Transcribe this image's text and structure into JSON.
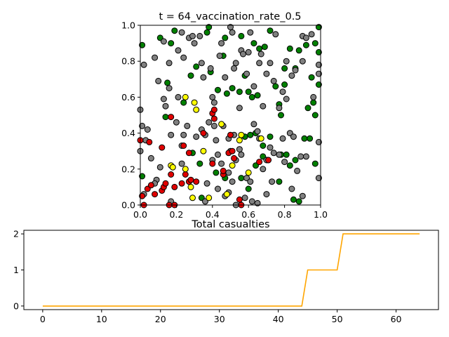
{
  "chart_data": [
    {
      "type": "scatter",
      "title": "t = 64_vaccination_rate_0.5",
      "xlim": [
        0,
        1
      ],
      "ylim": [
        0,
        1
      ],
      "xticks": [
        "0.0",
        "0.2",
        "0.4",
        "0.6",
        "0.8",
        "1.0"
      ],
      "yticks": [
        "0.0",
        "0.2",
        "0.4",
        "0.6",
        "0.8",
        "1.0"
      ],
      "status_colors": {
        "grey": "#808080",
        "green": "#008000",
        "red": "#e00000",
        "yellow": "#ffff00"
      },
      "series": [
        {
          "color": "green",
          "points": [
            [
              0.01,
              0.89
            ],
            [
              0.11,
              0.93
            ],
            [
              0.17,
              0.9
            ],
            [
              0.19,
              0.97
            ],
            [
              0.28,
              0.72
            ],
            [
              0.31,
              0.77
            ],
            [
              0.37,
              0.96
            ],
            [
              0.38,
              0.99
            ],
            [
              0.39,
              0.74
            ],
            [
              0.46,
              0.83
            ],
            [
              0.47,
              0.93
            ],
            [
              0.48,
              0.62
            ],
            [
              0.43,
              0.64
            ],
            [
              0.56,
              0.94
            ],
            [
              0.58,
              0.72
            ],
            [
              0.55,
              0.63
            ],
            [
              0.6,
              0.63
            ],
            [
              0.62,
              0.6
            ],
            [
              0.63,
              0.9
            ],
            [
              0.65,
              0.61
            ],
            [
              0.66,
              0.87
            ],
            [
              0.69,
              0.88
            ],
            [
              0.72,
              0.97
            ],
            [
              0.75,
              0.66
            ],
            [
              0.77,
              0.56
            ],
            [
              0.78,
              0.5
            ],
            [
              0.8,
              0.76
            ],
            [
              0.83,
              0.87
            ],
            [
              0.86,
              0.76
            ],
            [
              0.88,
              0.86
            ],
            [
              0.92,
              0.89
            ],
            [
              0.95,
              0.71
            ],
            [
              0.97,
              0.9
            ],
            [
              0.99,
              0.85
            ],
            [
              0.99,
              0.99
            ],
            [
              0.96,
              0.57
            ],
            [
              0.93,
              0.54
            ],
            [
              0.97,
              0.5
            ],
            [
              0.99,
              0.67
            ],
            [
              0.72,
              0.38
            ],
            [
              0.68,
              0.33
            ],
            [
              0.64,
              0.4
            ],
            [
              0.61,
              0.39
            ],
            [
              0.58,
              0.38
            ],
            [
              0.64,
              0.22
            ],
            [
              0.56,
              0.15
            ],
            [
              0.47,
              0.15
            ],
            [
              0.42,
              0.18
            ],
            [
              0.33,
              0.23
            ],
            [
              0.34,
              0.04
            ],
            [
              0.71,
              0.25
            ],
            [
              0.77,
              0.13
            ],
            [
              0.78,
              0.28
            ],
            [
              0.81,
              0.28
            ],
            [
              0.83,
              0.22
            ],
            [
              0.85,
              0.03
            ],
            [
              0.86,
              0.25
            ],
            [
              0.88,
              0.02
            ],
            [
              0.91,
              0.37
            ],
            [
              0.94,
              0.37
            ],
            [
              0.97,
              0.23
            ],
            [
              0.24,
              0.57
            ],
            [
              0.29,
              0.29
            ],
            [
              0.14,
              0.49
            ],
            [
              0.15,
              0.68
            ],
            [
              0.01,
              0.16
            ],
            [
              0.6,
              0.09
            ],
            [
              0.68,
              0.27
            ],
            [
              0.8,
              0.67
            ],
            [
              0.51,
              0.65
            ]
          ]
        },
        {
          "color": "grey",
          "points": [
            [
              0.02,
              0.78
            ],
            [
              0.08,
              0.82
            ],
            [
              0.1,
              0.69
            ],
            [
              0.13,
              0.91
            ],
            [
              0.16,
              0.65
            ],
            [
              0.16,
              0.79
            ],
            [
              0.21,
              0.86
            ],
            [
              0.23,
              0.96
            ],
            [
              0.24,
              0.82
            ],
            [
              0.27,
              0.93
            ],
            [
              0.29,
              0.94
            ],
            [
              0.3,
              0.9
            ],
            [
              0.33,
              0.94
            ],
            [
              0.34,
              0.79
            ],
            [
              0.35,
              0.71
            ],
            [
              0.39,
              0.76
            ],
            [
              0.4,
              0.6
            ],
            [
              0.41,
              0.57
            ],
            [
              0.44,
              0.83
            ],
            [
              0.45,
              0.9
            ],
            [
              0.47,
              0.71
            ],
            [
              0.5,
              0.99
            ],
            [
              0.51,
              0.96
            ],
            [
              0.52,
              0.76
            ],
            [
              0.53,
              0.79
            ],
            [
              0.55,
              0.54
            ],
            [
              0.56,
              0.86
            ],
            [
              0.57,
              0.84
            ],
            [
              0.59,
              0.73
            ],
            [
              0.6,
              0.85
            ],
            [
              0.61,
              0.96
            ],
            [
              0.63,
              0.66
            ],
            [
              0.66,
              0.79
            ],
            [
              0.67,
              0.84
            ],
            [
              0.68,
              0.55
            ],
            [
              0.7,
              0.73
            ],
            [
              0.72,
              0.79
            ],
            [
              0.74,
              0.69
            ],
            [
              0.75,
              0.95
            ],
            [
              0.77,
              0.54
            ],
            [
              0.79,
              0.63
            ],
            [
              0.81,
              0.59
            ],
            [
              0.81,
              0.8
            ],
            [
              0.84,
              0.72
            ],
            [
              0.86,
              0.75
            ],
            [
              0.9,
              0.94
            ],
            [
              0.9,
              0.8
            ],
            [
              0.92,
              0.93
            ],
            [
              0.95,
              0.95
            ],
            [
              0.96,
              0.6
            ],
            [
              0.99,
              0.78
            ],
            [
              0.99,
              0.73
            ],
            [
              0.0,
              0.53
            ],
            [
              0.01,
              0.44
            ],
            [
              0.04,
              0.42
            ],
            [
              0.06,
              0.26
            ],
            [
              0.09,
              0.14
            ],
            [
              0.11,
              0.21
            ],
            [
              0.13,
              0.59
            ],
            [
              0.14,
              0.55
            ],
            [
              0.17,
              0.39
            ],
            [
              0.2,
              0.46
            ],
            [
              0.21,
              0.6
            ],
            [
              0.23,
              0.33
            ],
            [
              0.24,
              0.39
            ],
            [
              0.26,
              0.44
            ],
            [
              0.31,
              0.38
            ],
            [
              0.34,
              0.42
            ],
            [
              0.36,
              0.39
            ],
            [
              0.38,
              0.46
            ],
            [
              0.41,
              0.44
            ],
            [
              0.42,
              0.36
            ],
            [
              0.43,
              0.28
            ],
            [
              0.45,
              0.23
            ],
            [
              0.46,
              0.44
            ],
            [
              0.49,
              0.37
            ],
            [
              0.5,
              0.3
            ],
            [
              0.52,
              0.39
            ],
            [
              0.53,
              0.25
            ],
            [
              0.55,
              0.31
            ],
            [
              0.56,
              0.28
            ],
            [
              0.59,
              0.15
            ],
            [
              0.61,
              0.13
            ],
            [
              0.63,
              0.45
            ],
            [
              0.65,
              0.41
            ],
            [
              0.66,
              0.37
            ],
            [
              0.68,
              0.2
            ],
            [
              0.7,
              0.25
            ],
            [
              0.72,
              0.32
            ],
            [
              0.74,
              0.29
            ],
            [
              0.77,
              0.28
            ],
            [
              0.79,
              0.37
            ],
            [
              0.8,
              0.24
            ],
            [
              0.83,
              0.4
            ],
            [
              0.85,
              0.38
            ],
            [
              0.87,
              0.19
            ],
            [
              0.89,
              0.27
            ],
            [
              0.92,
              0.27
            ],
            [
              0.99,
              0.35
            ],
            [
              0.99,
              0.15
            ],
            [
              0.47,
              0.05
            ],
            [
              0.49,
              0.07
            ],
            [
              0.53,
              0.0
            ],
            [
              0.58,
              0.04
            ],
            [
              0.62,
              0.02
            ],
            [
              0.65,
              0.01
            ],
            [
              0.7,
              0.06
            ],
            [
              0.73,
              0.13
            ],
            [
              0.84,
              0.09
            ],
            [
              0.9,
              0.05
            ],
            [
              0.0,
              0.3
            ],
            [
              0.03,
              0.36
            ],
            [
              0.02,
              0.06
            ],
            [
              0.08,
              0.12
            ],
            [
              0.17,
              0.02
            ],
            [
              0.23,
              0.23
            ],
            [
              0.37,
              0.12
            ],
            [
              0.4,
              0.25
            ],
            [
              0.43,
              0.09
            ],
            [
              0.49,
              0.18
            ],
            [
              0.51,
              0.13
            ],
            [
              0.36,
              0.02
            ]
          ]
        },
        {
          "color": "red",
          "points": [
            [
              0.0,
              0.36
            ],
            [
              0.05,
              0.35
            ],
            [
              0.12,
              0.32
            ],
            [
              0.02,
              0.0
            ],
            [
              0.04,
              0.09
            ],
            [
              0.06,
              0.11
            ],
            [
              0.08,
              0.06
            ],
            [
              0.12,
              0.08
            ],
            [
              0.13,
              0.1
            ],
            [
              0.14,
              0.12
            ],
            [
              0.17,
              0.17
            ],
            [
              0.19,
              0.1
            ],
            [
              0.23,
              0.12
            ],
            [
              0.25,
              0.17
            ],
            [
              0.27,
              0.13
            ],
            [
              0.28,
              0.14
            ],
            [
              0.31,
              0.13
            ],
            [
              0.35,
              0.4
            ],
            [
              0.4,
              0.51
            ],
            [
              0.41,
              0.53
            ],
            [
              0.4,
              0.23
            ],
            [
              0.46,
              0.17
            ],
            [
              0.46,
              0.19
            ],
            [
              0.49,
              0.29
            ],
            [
              0.51,
              0.3
            ],
            [
              0.52,
              0.26
            ],
            [
              0.55,
              0.03
            ],
            [
              0.56,
              0.0
            ],
            [
              0.66,
              0.24
            ],
            [
              0.71,
              0.25
            ],
            [
              0.5,
              0.39
            ],
            [
              0.24,
              0.33
            ],
            [
              0.17,
              0.49
            ],
            [
              0.27,
              0.29
            ],
            [
              0.41,
              0.48
            ],
            [
              0.16,
              0.0
            ],
            [
              0.01,
              0.05
            ],
            [
              0.19,
              0.0
            ]
          ]
        },
        {
          "color": "yellow",
          "points": [
            [
              0.25,
              0.6
            ],
            [
              0.3,
              0.57
            ],
            [
              0.31,
              0.53
            ],
            [
              0.35,
              0.3
            ],
            [
              0.38,
              0.04
            ],
            [
              0.45,
              0.45
            ],
            [
              0.48,
              0.06
            ],
            [
              0.51,
              0.22
            ],
            [
              0.55,
              0.36
            ],
            [
              0.56,
              0.39
            ],
            [
              0.6,
              0.18
            ],
            [
              0.67,
              0.37
            ],
            [
              0.28,
              0.1
            ],
            [
              0.25,
              0.2
            ],
            [
              0.17,
              0.22
            ],
            [
              0.18,
              0.21
            ],
            [
              0.29,
              0.04
            ]
          ]
        }
      ]
    },
    {
      "type": "line",
      "title": "Total casualties",
      "color": "#ffa500",
      "xlim": [
        -3.2,
        67.2
      ],
      "ylim": [
        -0.1,
        2.1
      ],
      "xticks": [
        "0",
        "10",
        "20",
        "30",
        "40",
        "50",
        "60"
      ],
      "yticks": [
        "0",
        "1",
        "2"
      ],
      "x": [
        0,
        44,
        45,
        50,
        51,
        64
      ],
      "y": [
        0,
        0,
        1,
        1,
        2,
        2
      ]
    }
  ]
}
